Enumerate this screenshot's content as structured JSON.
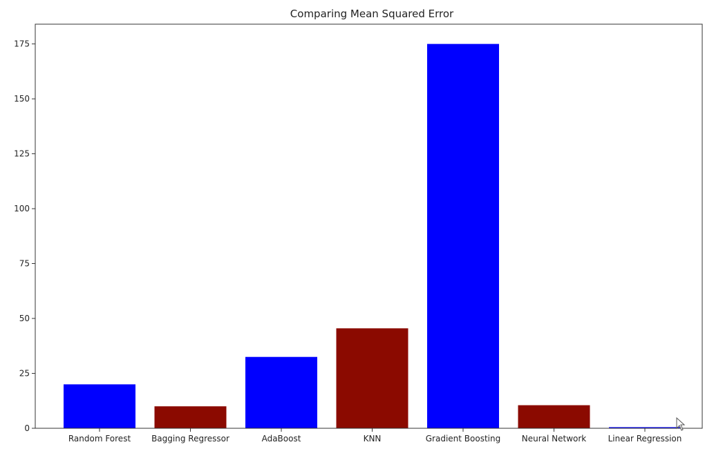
{
  "chart_data": {
    "type": "bar",
    "title": "Comparing Mean Squared Error",
    "xlabel": "",
    "ylabel": "",
    "categories": [
      "Random Forest",
      "Bagging Regressor",
      "AdaBoost",
      "KNN",
      "Gradient Boosting",
      "Neural Network",
      "Linear Regression"
    ],
    "values": [
      20,
      10,
      32.5,
      45.5,
      175,
      10.5,
      0.5
    ],
    "bar_colors": [
      "#0000ff",
      "#8b0a00",
      "#0000ff",
      "#8b0a00",
      "#0000ff",
      "#8b0a00",
      "#0000ff"
    ],
    "ylim": [
      0,
      184
    ],
    "yticks": [
      0,
      25,
      50,
      75,
      100,
      125,
      150,
      175
    ],
    "grid": false,
    "legend": "none"
  },
  "cursor": {
    "icon": "mouse-pointer-icon"
  }
}
